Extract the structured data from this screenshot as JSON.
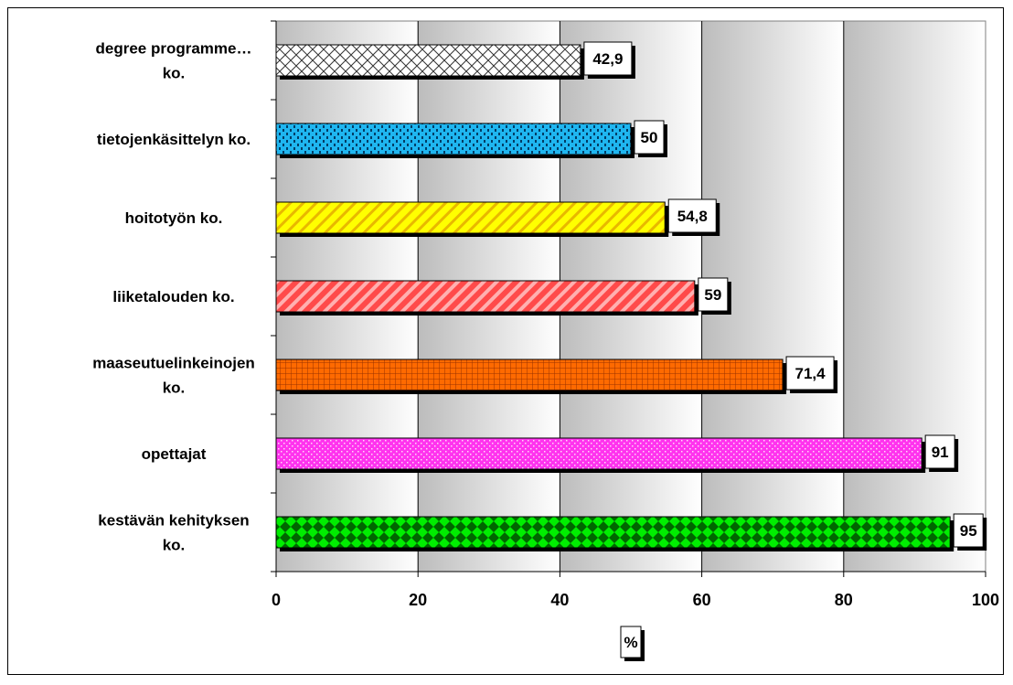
{
  "chart_data": {
    "type": "bar",
    "orientation": "horizontal",
    "categories": [
      [
        "degree programme…",
        "ko."
      ],
      [
        "tietojenkäsittelyn ko."
      ],
      [
        "hoitotyön ko."
      ],
      [
        "liiketalouden ko."
      ],
      [
        "maaseutuelinkeinojen",
        "ko."
      ],
      [
        "opettajat"
      ],
      [
        "kestävän kehityksen",
        "ko."
      ]
    ],
    "values": [
      42.9,
      50,
      54.8,
      59,
      71.4,
      91,
      95
    ],
    "data_labels": [
      "42,9",
      "50",
      "54,8",
      "59",
      "71,4",
      "91",
      "95"
    ],
    "bar_colors": [
      "#ffffff",
      "#1fb6f0",
      "#ffff00",
      "#ff4a4a",
      "#ff6a00",
      "#ff33ee",
      "#00dd00"
    ],
    "bar_patterns": [
      "crosshatch",
      "dots",
      "diagonal",
      "diagonal",
      "grid",
      "dots",
      "diamonds"
    ],
    "xlim": [
      0,
      100
    ],
    "xticks": [
      "0",
      "20",
      "40",
      "60",
      "80",
      "100"
    ],
    "xlabel": "%",
    "grid": true,
    "legend": "none"
  }
}
